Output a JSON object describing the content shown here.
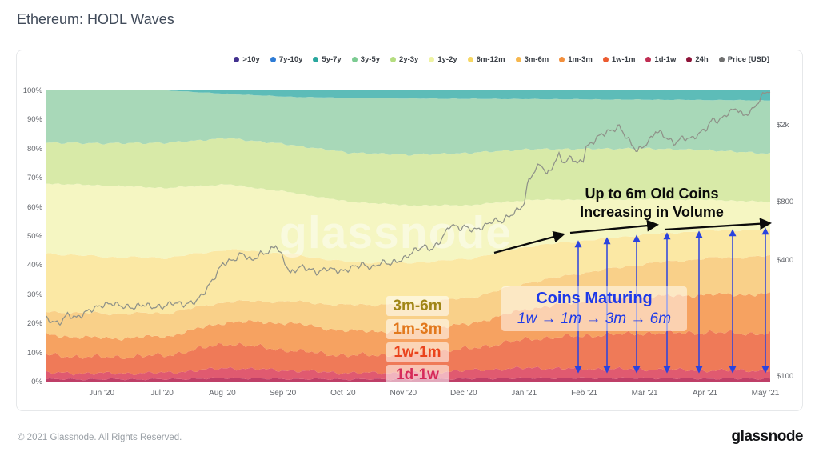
{
  "page": {
    "title": "Ethereum: HODL Waves",
    "watermark": "glassnode",
    "footer_left": "© 2021 Glassnode. All Rights Reserved.",
    "footer_logo": "glassnode"
  },
  "annotations": {
    "volume_note": {
      "line1": "Up to 6m Old Coins",
      "line2": "Increasing in Volume"
    },
    "maturing_note": {
      "title": "Coins Maturing",
      "flow": "1w → 1m → 3m → 6m"
    },
    "band_labels": [
      {
        "text": "3m-6m",
        "color": "#a08616"
      },
      {
        "text": "1m-3m",
        "color": "#e2791d"
      },
      {
        "text": "1w-1m",
        "color": "#ea431d"
      },
      {
        "text": "1d-1w",
        "color": "#d62a5a"
      }
    ]
  },
  "chart_data": {
    "type": "area",
    "stacked": true,
    "title": "Ethereum: HODL Waves",
    "grid": false,
    "legend_position": "top",
    "x_domain": [
      "mid-May 2020",
      "May 2021"
    ],
    "x_samples": "13 evenly spaced control points across the domain",
    "x_tick_labels": [
      "Jun '20",
      "Jul '20",
      "Aug '20",
      "Sep '20",
      "Oct '20",
      "Nov '20",
      "Dec '20",
      "Jan '21",
      "Feb '21",
      "Mar '21",
      "Apr '21",
      "May '21"
    ],
    "y_left": {
      "unit": "%",
      "range": [
        0,
        100
      ],
      "ticks": [
        "0%",
        "10%",
        "20%",
        "30%",
        "40%",
        "50%",
        "60%",
        "70%",
        "80%",
        "90%",
        "100%"
      ]
    },
    "y_right": {
      "unit": "USD",
      "scale": "log",
      "pct_at_100": 1.9,
      "pct_per_decade": 66.4,
      "ticks": [
        {
          "label": "$2k",
          "value": 2000
        },
        {
          "label": "$800",
          "value": 800
        },
        {
          "label": "$400",
          "value": 400
        },
        {
          "label": "$100",
          "value": 100
        }
      ]
    },
    "bands": [
      {
        "label": ">10y",
        "dot": "#43318f",
        "fill": "#7b68c8",
        "values": [
          0,
          0,
          0,
          0,
          0,
          0,
          0,
          0,
          0,
          0,
          0,
          0,
          0
        ]
      },
      {
        "label": "7y-10y",
        "dot": "#2e7cd6",
        "fill": "#5aa0e0",
        "values": [
          0,
          0,
          0,
          0,
          0,
          0,
          0,
          0,
          0,
          0,
          0,
          0,
          0
        ]
      },
      {
        "label": "5y-7y",
        "dot": "#2aa79e",
        "fill": "#5dbcb8",
        "values": [
          0,
          0,
          0,
          1.2,
          2.2,
          2.6,
          2.8,
          2.9,
          3.0,
          3.1,
          3.2,
          3.3,
          3.4
        ]
      },
      {
        "label": "3y-5y",
        "dot": "#7ccb92",
        "fill": "#a8d8b8",
        "values": [
          18.0,
          18.2,
          18.0,
          15.3,
          16.6,
          19.0,
          19.5,
          18.7,
          17.3,
          17.1,
          16.8,
          17.2,
          18.2
        ]
      },
      {
        "label": "2y-3y",
        "dot": "#b5dd80",
        "fill": "#d8eaa8",
        "values": [
          14.0,
          14.5,
          15.5,
          16.0,
          16.5,
          17.0,
          17.5,
          18.0,
          17.5,
          17.5,
          17.5,
          17.0,
          16.5
        ]
      },
      {
        "label": "1y-2y",
        "dot": "#eef3a2",
        "fill": "#f5f6c2",
        "values": [
          24.0,
          24.5,
          24.0,
          22.5,
          21.5,
          21.0,
          20.0,
          18.5,
          16.0,
          14.0,
          12.0,
          10.5,
          9.5
        ]
      },
      {
        "label": "6m-12m",
        "dot": "#f6d763",
        "fill": "#fbe8a4",
        "values": [
          20.0,
          19.5,
          19.0,
          18.0,
          16.5,
          15.0,
          14.0,
          13.5,
          12.5,
          11.0,
          10.0,
          9.5,
          9.0
        ]
      },
      {
        "label": "3m-6m",
        "dot": "#f6b74e",
        "fill": "#f9d089",
        "values": [
          8.0,
          8.5,
          8.0,
          7.0,
          7.5,
          9.0,
          9.5,
          9.0,
          9.0,
          10.0,
          11.5,
          12.5,
          13.0
        ]
      },
      {
        "label": "1m-3m",
        "dot": "#f28f3c",
        "fill": "#f6a261",
        "values": [
          7.0,
          6.5,
          6.5,
          7.5,
          9.5,
          8.5,
          8.0,
          8.5,
          10.5,
          12.0,
          12.5,
          13.0,
          13.5
        ]
      },
      {
        "label": "1w-1m",
        "dot": "#ec5b30",
        "fill": "#ef7a58",
        "values": [
          6.0,
          5.5,
          6.0,
          8.5,
          7.0,
          6.0,
          6.5,
          7.5,
          10.0,
          11.5,
          12.5,
          13.0,
          12.5
        ]
      },
      {
        "label": "1d-1w",
        "dot": "#c02e53",
        "fill": "#e05a70",
        "values": [
          2.2,
          2.0,
          2.2,
          3.5,
          3.0,
          2.2,
          2.2,
          2.8,
          3.5,
          3.2,
          3.0,
          2.8,
          2.8
        ]
      },
      {
        "label": "24h",
        "dot": "#8d1338",
        "fill": "#bf3f68",
        "values": [
          0.8,
          0.8,
          0.8,
          1.2,
          0.9,
          0.8,
          0.8,
          1.0,
          1.2,
          1.2,
          1.2,
          1.0,
          1.0
        ]
      }
    ],
    "price_series": {
      "name": "Price [USD]",
      "dot": "#6f6f6f",
      "color": "#8f9289",
      "points": [
        [
          0,
          198
        ],
        [
          0.2,
          186
        ],
        [
          0.35,
          208
        ],
        [
          0.5,
          200
        ],
        [
          0.7,
          218
        ],
        [
          0.92,
          232
        ],
        [
          1.1,
          238
        ],
        [
          1.25,
          230
        ],
        [
          1.45,
          226
        ],
        [
          1.6,
          235
        ],
        [
          1.75,
          228
        ],
        [
          1.92,
          228
        ],
        [
          2.1,
          240
        ],
        [
          2.3,
          234
        ],
        [
          2.5,
          246
        ],
        [
          2.65,
          280
        ],
        [
          2.8,
          330
        ],
        [
          2.92,
          382
        ],
        [
          3.1,
          398
        ],
        [
          3.25,
          432
        ],
        [
          3.4,
          395
        ],
        [
          3.55,
          428
        ],
        [
          3.7,
          440
        ],
        [
          3.8,
          478
        ],
        [
          3.88,
          430
        ],
        [
          3.95,
          388
        ],
        [
          4.05,
          338
        ],
        [
          4.2,
          368
        ],
        [
          4.35,
          358
        ],
        [
          4.5,
          342
        ],
        [
          4.65,
          362
        ],
        [
          4.8,
          352
        ],
        [
          4.92,
          348
        ],
        [
          5.1,
          368
        ],
        [
          5.25,
          378
        ],
        [
          5.4,
          362
        ],
        [
          5.55,
          388
        ],
        [
          5.7,
          382
        ],
        [
          5.85,
          396
        ],
        [
          5.92,
          402
        ],
        [
          6.1,
          445
        ],
        [
          6.25,
          468
        ],
        [
          6.4,
          452
        ],
        [
          6.55,
          510
        ],
        [
          6.7,
          608
        ],
        [
          6.85,
          580
        ],
        [
          6.92,
          592
        ],
        [
          7.1,
          568
        ],
        [
          7.25,
          592
        ],
        [
          7.4,
          638
        ],
        [
          7.55,
          632
        ],
        [
          7.7,
          682
        ],
        [
          7.85,
          736
        ],
        [
          7.92,
          780
        ],
        [
          8.0,
          1042
        ],
        [
          8.1,
          1152
        ],
        [
          8.2,
          1262
        ],
        [
          8.3,
          1092
        ],
        [
          8.4,
          1232
        ],
        [
          8.5,
          1388
        ],
        [
          8.6,
          1258
        ],
        [
          8.7,
          1370
        ],
        [
          8.8,
          1248
        ],
        [
          8.9,
          1326
        ],
        [
          8.95,
          1518
        ],
        [
          9.1,
          1668
        ],
        [
          9.2,
          1782
        ],
        [
          9.35,
          1852
        ],
        [
          9.5,
          1948
        ],
        [
          9.6,
          1752
        ],
        [
          9.7,
          1582
        ],
        [
          9.8,
          1458
        ],
        [
          9.9,
          1548
        ],
        [
          10.0,
          1652
        ],
        [
          10.1,
          1848
        ],
        [
          10.2,
          1792
        ],
        [
          10.3,
          1692
        ],
        [
          10.4,
          1598
        ],
        [
          10.55,
          1708
        ],
        [
          10.7,
          1688
        ],
        [
          10.85,
          1818
        ],
        [
          10.95,
          1922
        ],
        [
          11.05,
          2132
        ],
        [
          11.15,
          2082
        ],
        [
          11.3,
          2298
        ],
        [
          11.45,
          2428
        ],
        [
          11.55,
          2212
        ],
        [
          11.7,
          2362
        ],
        [
          11.85,
          2758
        ],
        [
          11.92,
          2948
        ],
        [
          12,
          2985
        ]
      ]
    }
  }
}
